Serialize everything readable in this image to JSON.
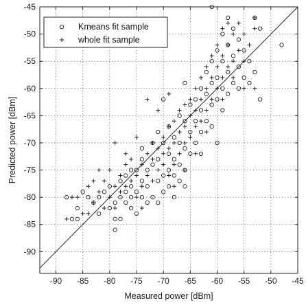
{
  "chart_data": {
    "type": "scatter",
    "title": "",
    "xlabel": "Measured power [dBm]",
    "ylabel": "Predicted power [dBm]",
    "xlim": [
      -93,
      -45
    ],
    "ylim": [
      -94,
      -45
    ],
    "xticks": [
      -90,
      -85,
      -80,
      -75,
      -70,
      -65,
      -60,
      -55,
      -50,
      -45
    ],
    "yticks": [
      -45,
      -50,
      -55,
      -60,
      -65,
      -70,
      -75,
      -80,
      -85,
      -90
    ],
    "grid": true,
    "legend_position": "top-left",
    "reference_line": "y = x",
    "series": [
      {
        "name": "Kmeans fit sample",
        "marker": "circle",
        "points": [
          [
            -88,
            -80
          ],
          [
            -87,
            -84
          ],
          [
            -86,
            -82
          ],
          [
            -85,
            -79
          ],
          [
            -84,
            -80
          ],
          [
            -83,
            -81
          ],
          [
            -82,
            -80
          ],
          [
            -82,
            -83
          ],
          [
            -81,
            -79
          ],
          [
            -80,
            -82
          ],
          [
            -80,
            -78
          ],
          [
            -79,
            -84
          ],
          [
            -79,
            -81
          ],
          [
            -78,
            -80
          ],
          [
            -78,
            -84
          ],
          [
            -78,
            -77
          ],
          [
            -77,
            -79
          ],
          [
            -77,
            -81
          ],
          [
            -77,
            -76
          ],
          [
            -76,
            -80
          ],
          [
            -76,
            -82
          ],
          [
            -76,
            -78
          ],
          [
            -75,
            -75
          ],
          [
            -75,
            -79
          ],
          [
            -75,
            -83
          ],
          [
            -74,
            -77
          ],
          [
            -74,
            -80
          ],
          [
            -74,
            -71
          ],
          [
            -73,
            -75
          ],
          [
            -73,
            -78
          ],
          [
            -73,
            -81
          ],
          [
            -72,
            -70
          ],
          [
            -72,
            -74
          ],
          [
            -72,
            -80
          ],
          [
            -71,
            -68
          ],
          [
            -71,
            -73
          ],
          [
            -71,
            -77
          ],
          [
            -71,
            -81
          ],
          [
            -70,
            -70
          ],
          [
            -70,
            -76
          ],
          [
            -70,
            -79
          ],
          [
            -69,
            -67
          ],
          [
            -69,
            -72
          ],
          [
            -69,
            -75
          ],
          [
            -69,
            -78
          ],
          [
            -68,
            -69
          ],
          [
            -68,
            -73
          ],
          [
            -68,
            -76
          ],
          [
            -67,
            -65
          ],
          [
            -67,
            -70
          ],
          [
            -67,
            -74
          ],
          [
            -67,
            -77
          ],
          [
            -66,
            -66
          ],
          [
            -66,
            -71
          ],
          [
            -66,
            -75
          ],
          [
            -65,
            -63
          ],
          [
            -65,
            -68
          ],
          [
            -65,
            -72
          ],
          [
            -64,
            -62
          ],
          [
            -64,
            -66
          ],
          [
            -64,
            -70
          ],
          [
            -63,
            -60
          ],
          [
            -63,
            -64
          ],
          [
            -63,
            -68
          ],
          [
            -62,
            -57
          ],
          [
            -62,
            -61
          ],
          [
            -62,
            -66
          ],
          [
            -61,
            -55
          ],
          [
            -61,
            -59
          ],
          [
            -61,
            -63
          ],
          [
            -61,
            -67
          ],
          [
            -60,
            -53
          ],
          [
            -60,
            -58
          ],
          [
            -60,
            -62
          ],
          [
            -59,
            -50
          ],
          [
            -59,
            -55
          ],
          [
            -59,
            -60
          ],
          [
            -59,
            -64
          ],
          [
            -58,
            -52
          ],
          [
            -58,
            -57
          ],
          [
            -58,
            -61
          ],
          [
            -57,
            -49
          ],
          [
            -57,
            -54
          ],
          [
            -57,
            -59
          ],
          [
            -56,
            -51
          ],
          [
            -56,
            -56
          ],
          [
            -56,
            -60
          ],
          [
            -55,
            -53
          ],
          [
            -55,
            -58
          ],
          [
            -54,
            -55
          ],
          [
            -54,
            -59
          ],
          [
            -53,
            -47
          ],
          [
            -53,
            -57
          ],
          [
            -52,
            -49
          ],
          [
            -52,
            -62
          ],
          [
            -48,
            -52
          ],
          [
            -61,
            -45
          ],
          [
            -58,
            -47
          ],
          [
            -66,
            -59
          ],
          [
            -70,
            -62
          ],
          [
            -74,
            -73
          ],
          [
            -76,
            -75
          ],
          [
            -79,
            -86
          ],
          [
            -86,
            -84
          ],
          [
            -68,
            -80
          ],
          [
            -66,
            -78
          ],
          [
            -63,
            -72
          ],
          [
            -60,
            -70
          ]
        ]
      },
      {
        "name": "whole fit sample",
        "marker": "plus",
        "points": [
          [
            -88,
            -84
          ],
          [
            -86,
            -80
          ],
          [
            -85,
            -83
          ],
          [
            -84,
            -78
          ],
          [
            -83,
            -81
          ],
          [
            -83,
            -77
          ],
          [
            -82,
            -79
          ],
          [
            -81,
            -82
          ],
          [
            -81,
            -77
          ],
          [
            -80,
            -80
          ],
          [
            -80,
            -75
          ],
          [
            -79,
            -78
          ],
          [
            -79,
            -82
          ],
          [
            -78,
            -76
          ],
          [
            -78,
            -79
          ],
          [
            -77,
            -74
          ],
          [
            -77,
            -78
          ],
          [
            -76,
            -77
          ],
          [
            -76,
            -73
          ],
          [
            -75,
            -76
          ],
          [
            -75,
            -80
          ],
          [
            -74,
            -74
          ],
          [
            -74,
            -78
          ],
          [
            -73,
            -72
          ],
          [
            -73,
            -76
          ],
          [
            -72,
            -70
          ],
          [
            -72,
            -73
          ],
          [
            -72,
            -77
          ],
          [
            -71,
            -71
          ],
          [
            -71,
            -75
          ],
          [
            -70,
            -69
          ],
          [
            -70,
            -72
          ],
          [
            -70,
            -74
          ],
          [
            -69,
            -67
          ],
          [
            -69,
            -71
          ],
          [
            -69,
            -76
          ],
          [
            -68,
            -66
          ],
          [
            -68,
            -70
          ],
          [
            -68,
            -74
          ],
          [
            -67,
            -64
          ],
          [
            -67,
            -68
          ],
          [
            -67,
            -72
          ],
          [
            -66,
            -63
          ],
          [
            -66,
            -67
          ],
          [
            -66,
            -70
          ],
          [
            -65,
            -62
          ],
          [
            -65,
            -65
          ],
          [
            -65,
            -69
          ],
          [
            -64,
            -60
          ],
          [
            -64,
            -64
          ],
          [
            -64,
            -67
          ],
          [
            -63,
            -58
          ],
          [
            -63,
            -62
          ],
          [
            -63,
            -66
          ],
          [
            -62,
            -56
          ],
          [
            -62,
            -60
          ],
          [
            -62,
            -64
          ],
          [
            -61,
            -54
          ],
          [
            -61,
            -58
          ],
          [
            -61,
            -62
          ],
          [
            -60,
            -52
          ],
          [
            -60,
            -56
          ],
          [
            -60,
            -60
          ],
          [
            -59,
            -49
          ],
          [
            -59,
            -54
          ],
          [
            -59,
            -58
          ],
          [
            -58,
            -48
          ],
          [
            -58,
            -52
          ],
          [
            -58,
            -56
          ],
          [
            -57,
            -50
          ],
          [
            -57,
            -55
          ],
          [
            -56,
            -48
          ],
          [
            -56,
            -53
          ],
          [
            -55,
            -50
          ],
          [
            -55,
            -55
          ],
          [
            -54,
            -52
          ],
          [
            -53,
            -49
          ],
          [
            -53,
            -47
          ],
          [
            -53,
            -60
          ],
          [
            -71,
            -64
          ],
          [
            -73,
            -62
          ],
          [
            -75,
            -69
          ],
          [
            -77,
            -72
          ],
          [
            -79,
            -70
          ],
          [
            -82,
            -75
          ],
          [
            -84,
            -83
          ],
          [
            -87,
            -80
          ],
          [
            -69,
            -61
          ],
          [
            -62,
            -68
          ],
          [
            -64,
            -72
          ],
          [
            -66,
            -75
          ],
          [
            -68,
            -78
          ],
          [
            -74,
            -82
          ],
          [
            -59,
            -62
          ],
          [
            -57,
            -58
          ],
          [
            -55,
            -60
          ]
        ]
      }
    ]
  }
}
